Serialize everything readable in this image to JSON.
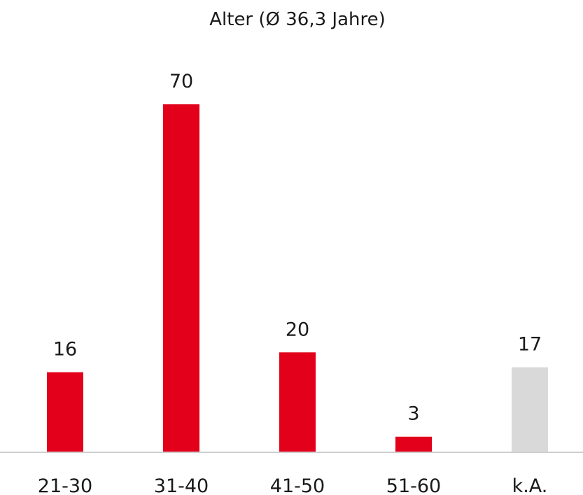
{
  "chart_data": {
    "type": "bar",
    "title": "Alter (Ø 36,3 Jahre)",
    "xlabel": "",
    "ylabel": "",
    "categories": [
      "21-30",
      "31-40",
      "41-50",
      "51-60",
      "k.A."
    ],
    "values": [
      16,
      70,
      20,
      3,
      17
    ],
    "value_labels": [
      "16",
      "70",
      "20",
      "3",
      "17"
    ],
    "bar_colors": [
      "#e2001a",
      "#e2001a",
      "#e2001a",
      "#e2001a",
      "#d9d9d9"
    ],
    "ylim": [
      0,
      70
    ],
    "grid": false,
    "legend": "none",
    "axis_color": "#bfbfbf"
  }
}
